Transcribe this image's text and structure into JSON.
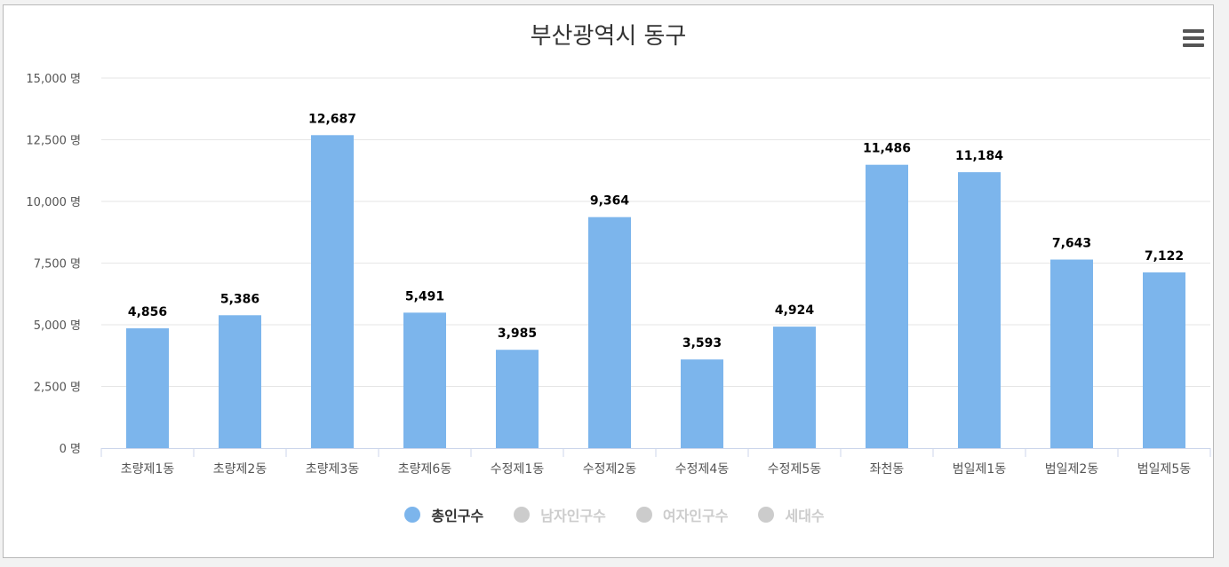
{
  "title": "부산광역시 동구",
  "menu_icon": "hamburger-menu-icon",
  "colors": {
    "bar": "#7cb5ec",
    "legend_active_text": "#333333",
    "legend_inactive": "#cccccc",
    "grid": "#e6e6e6",
    "axis": "#ccd6eb",
    "tick_text": "#555555"
  },
  "chart_data": {
    "type": "bar",
    "title": "부산광역시 동구",
    "categories": [
      "초량제1동",
      "초량제2동",
      "초량제3동",
      "초량제6동",
      "수정제1동",
      "수정제2동",
      "수정제4동",
      "수정제5동",
      "좌천동",
      "범일제1동",
      "범일제2동",
      "범일제5동"
    ],
    "series": [
      {
        "name": "총인구수",
        "values": [
          4856,
          5386,
          12687,
          5491,
          3985,
          9364,
          3593,
          4924,
          11486,
          11184,
          7643,
          7122
        ],
        "visible": true
      },
      {
        "name": "남자인구수",
        "visible": false
      },
      {
        "name": "여자인구수",
        "visible": false
      },
      {
        "name": "세대수",
        "visible": false
      }
    ],
    "value_labels": [
      "4,856",
      "5,386",
      "12,687",
      "5,491",
      "3,985",
      "9,364",
      "3,593",
      "4,924",
      "11,486",
      "11,184",
      "7,643",
      "7,122"
    ],
    "ylim": [
      0,
      15000
    ],
    "yticks": [
      0,
      2500,
      5000,
      7500,
      10000,
      12500,
      15000
    ],
    "ytick_labels": [
      "0 명",
      "2,500 명",
      "5,000 명",
      "7,500 명",
      "10,000 명",
      "12,500 명",
      "15,000 명"
    ],
    "grid": true,
    "legend_position": "bottom"
  }
}
